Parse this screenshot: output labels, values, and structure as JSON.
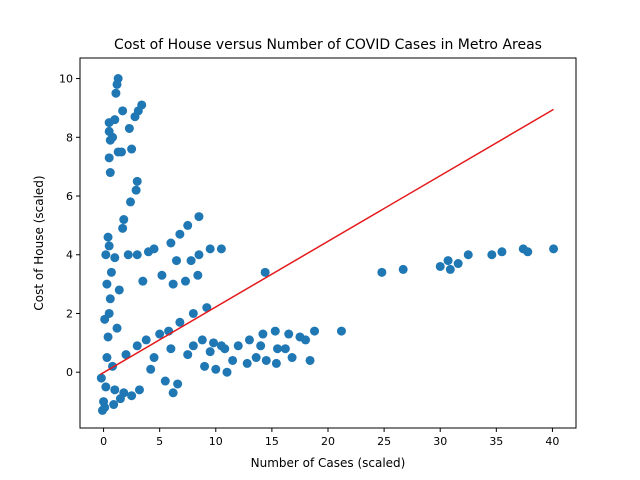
{
  "chart_data": {
    "type": "scatter",
    "title": "Cost of House versus Number of COVID Cases in Metro Areas",
    "xlabel": "Number of Cases (scaled)",
    "ylabel": "Cost of House (scaled)",
    "xlim": [
      -2.1,
      42.1
    ],
    "ylim": [
      -1.9,
      10.7
    ],
    "xticks": [
      0,
      5,
      10,
      15,
      20,
      25,
      30,
      35,
      40
    ],
    "yticks": [
      0,
      2,
      4,
      6,
      8,
      10
    ],
    "grid": false,
    "colors": {
      "points": "#1f77b4",
      "fit_line": "#e41a1c"
    },
    "fit_line": {
      "x": [
        -0.3,
        40.1
      ],
      "y": [
        -0.08,
        8.95
      ]
    },
    "points": [
      [
        0.0,
        -1.0
      ],
      [
        0.2,
        -0.5
      ],
      [
        0.3,
        0.5
      ],
      [
        0.4,
        1.2
      ],
      [
        0.5,
        2.0
      ],
      [
        0.3,
        3.0
      ],
      [
        0.2,
        4.0
      ],
      [
        0.1,
        1.8
      ],
      [
        0.6,
        2.5
      ],
      [
        0.7,
        3.4
      ],
      [
        0.5,
        4.3
      ],
      [
        0.8,
        0.2
      ],
      [
        1.0,
        -0.6
      ],
      [
        1.2,
        1.5
      ],
      [
        1.4,
        2.8
      ],
      [
        1.0,
        3.9
      ],
      [
        0.4,
        4.6
      ],
      [
        0.6,
        6.8
      ],
      [
        0.5,
        7.3
      ],
      [
        0.6,
        7.9
      ],
      [
        0.5,
        8.2
      ],
      [
        0.5,
        8.5
      ],
      [
        0.8,
        8.0
      ],
      [
        1.0,
        8.6
      ],
      [
        1.1,
        9.5
      ],
      [
        1.3,
        10.0
      ],
      [
        1.2,
        9.8
      ],
      [
        1.7,
        8.9
      ],
      [
        2.3,
        8.3
      ],
      [
        2.8,
        8.7
      ],
      [
        3.1,
        8.9
      ],
      [
        3.4,
        9.1
      ],
      [
        1.3,
        7.5
      ],
      [
        1.6,
        7.5
      ],
      [
        2.5,
        7.6
      ],
      [
        2.9,
        6.2
      ],
      [
        3.0,
        6.5
      ],
      [
        2.4,
        5.8
      ],
      [
        1.8,
        5.2
      ],
      [
        1.7,
        4.9
      ],
      [
        2.2,
        4.0
      ],
      [
        3.0,
        4.0
      ],
      [
        4.0,
        4.1
      ],
      [
        4.5,
        4.2
      ],
      [
        6.0,
        4.4
      ],
      [
        6.8,
        4.7
      ],
      [
        7.5,
        5.0
      ],
      [
        8.5,
        5.3
      ],
      [
        6.5,
        3.8
      ],
      [
        7.8,
        3.8
      ],
      [
        8.5,
        4.0
      ],
      [
        9.5,
        4.2
      ],
      [
        10.5,
        4.2
      ],
      [
        3.5,
        3.1
      ],
      [
        5.2,
        3.3
      ],
      [
        6.2,
        3.0
      ],
      [
        7.3,
        3.1
      ],
      [
        8.4,
        3.3
      ],
      [
        9.2,
        2.2
      ],
      [
        8.0,
        2.0
      ],
      [
        6.8,
        1.7
      ],
      [
        5.8,
        1.4
      ],
      [
        5.0,
        1.3
      ],
      [
        3.8,
        1.1
      ],
      [
        3.0,
        0.9
      ],
      [
        2.0,
        0.6
      ],
      [
        4.5,
        0.5
      ],
      [
        6.0,
        0.8
      ],
      [
        8.0,
        0.9
      ],
      [
        9.5,
        0.7
      ],
      [
        10.8,
        0.8
      ],
      [
        12.0,
        0.9
      ],
      [
        13.0,
        1.1
      ],
      [
        14.2,
        1.3
      ],
      [
        15.3,
        1.4
      ],
      [
        16.5,
        1.3
      ],
      [
        17.5,
        1.2
      ],
      [
        18.0,
        1.1
      ],
      [
        18.8,
        1.4
      ],
      [
        21.2,
        1.4
      ],
      [
        14.0,
        0.9
      ],
      [
        15.5,
        0.8
      ],
      [
        16.2,
        0.8
      ],
      [
        11.5,
        0.4
      ],
      [
        12.8,
        0.3
      ],
      [
        13.6,
        0.5
      ],
      [
        14.5,
        0.4
      ],
      [
        15.4,
        0.3
      ],
      [
        16.8,
        0.5
      ],
      [
        18.4,
        0.4
      ],
      [
        9.0,
        0.2
      ],
      [
        10.0,
        0.1
      ],
      [
        11.0,
        0.0
      ],
      [
        4.2,
        0.1
      ],
      [
        5.5,
        -0.3
      ],
      [
        6.6,
        -0.4
      ],
      [
        3.2,
        -0.6
      ],
      [
        2.5,
        -0.8
      ],
      [
        1.8,
        -0.7
      ],
      [
        1.5,
        -0.9
      ],
      [
        0.9,
        -1.1
      ],
      [
        0.1,
        -1.2
      ],
      [
        -0.1,
        -1.3
      ],
      [
        -0.2,
        -0.2
      ],
      [
        6.2,
        -0.7
      ],
      [
        7.5,
        0.6
      ],
      [
        8.8,
        1.1
      ],
      [
        9.8,
        1.0
      ],
      [
        10.5,
        0.9
      ],
      [
        14.4,
        3.4
      ],
      [
        24.8,
        3.4
      ],
      [
        26.7,
        3.5
      ],
      [
        30.0,
        3.6
      ],
      [
        30.7,
        3.8
      ],
      [
        30.9,
        3.5
      ],
      [
        31.6,
        3.7
      ],
      [
        32.5,
        4.0
      ],
      [
        34.6,
        4.0
      ],
      [
        35.5,
        4.1
      ],
      [
        37.4,
        4.2
      ],
      [
        37.8,
        4.1
      ],
      [
        40.1,
        4.2
      ]
    ]
  }
}
